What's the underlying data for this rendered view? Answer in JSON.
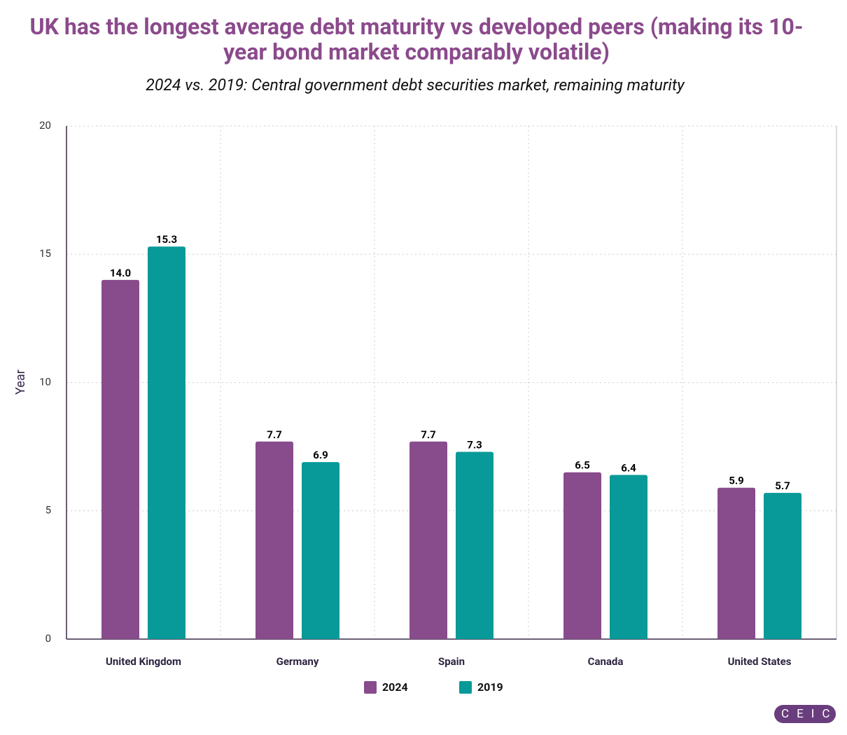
{
  "chart_data": {
    "type": "bar",
    "title": "UK has the longest average debt maturity vs developed peers (making its 10-year bond market comparably volatile)",
    "subtitle": "2024 vs. 2019: Central government debt securities market, remaining maturity",
    "y_label": "Year",
    "categories": [
      "United Kingdom",
      "Germany",
      "Spain",
      "Canada",
      "United States"
    ],
    "series": [
      {
        "name": "2024",
        "color": "#884c8c",
        "values": [
          14.0,
          7.7,
          7.7,
          6.5,
          5.9
        ],
        "value_labels": [
          "14.0",
          "7.7",
          "7.7",
          "6.5",
          "5.9"
        ]
      },
      {
        "name": "2019",
        "color": "#079a98",
        "values": [
          15.3,
          6.9,
          7.3,
          6.4,
          5.7
        ],
        "value_labels": [
          "15.3",
          "6.9",
          "7.3",
          "6.4",
          "5.7"
        ]
      }
    ],
    "ylim": [
      0,
      20
    ],
    "yticks": [
      0,
      5,
      10,
      15,
      20
    ],
    "grid": true,
    "legend": "bottom"
  },
  "brand": "CEIC"
}
